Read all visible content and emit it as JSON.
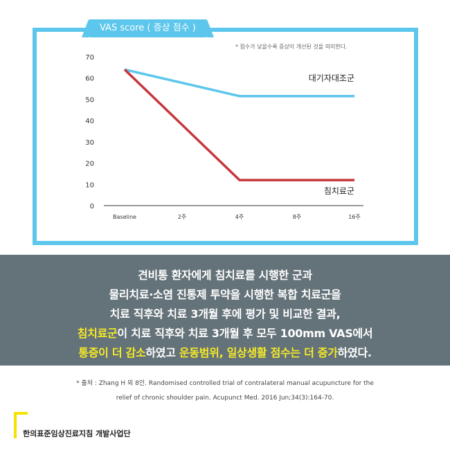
{
  "chart_data": {
    "type": "line",
    "title": "VAS score ( 증상 점수 )",
    "note": "* 점수가 낮을수록 증상이 개선된 것을 의미한다.",
    "categories": [
      "Baseline",
      "2주",
      "4주",
      "8주",
      "16주"
    ],
    "y_ticks": [
      "70",
      "60",
      "50",
      "40",
      "30",
      "20",
      "10",
      "0"
    ],
    "ylim": [
      0,
      70
    ],
    "grid": false,
    "series": [
      {
        "name": "대기자대조군",
        "color": "#5cc6ec",
        "points": [
          {
            "x": "Baseline",
            "y": 64
          },
          {
            "x": "4주",
            "y": 51.5
          },
          {
            "x": "16주",
            "y": 51.5
          }
        ]
      },
      {
        "name": "침치료군",
        "color": "#c6363c",
        "points": [
          {
            "x": "Baseline",
            "y": 64
          },
          {
            "x": "4주",
            "y": 12
          },
          {
            "x": "16주",
            "y": 12
          }
        ]
      }
    ]
  },
  "summary": {
    "line1": "견비통 환자에게 침치료를 시행한 군과",
    "line2": "물리치료·소염 진통제 투약을 시행한 복합 치료군을",
    "line3": "치료 직후와 치료 3개월 후에 평가 및 비교한 결과,",
    "line4_hl": "침치료군",
    "line4_rest": "이 치료 직후와 치료 3개월 후 모두 100mm VAS에서",
    "line5_hl1": "통증이 더 감소",
    "line5_mid": "하였고 ",
    "line5_hl2": "운동범위, 일상생활 점수는 더 증가",
    "line5_end": "하였다."
  },
  "citation": {
    "line1": "* 출처 : Zhang H 외 8인. Randomised controlled trial of contralateral manual acupuncture for the",
    "line2": "relief of chronic shoulder pain. Acupunct Med. 2016 Jun;34(3):164-70."
  },
  "footer": {
    "org": "한의표준임상진료지침 개발사업단"
  },
  "colors": {
    "accent_blue": "#5cc6ec",
    "accent_red": "#c6363c",
    "highlight_yellow": "#f6ea28",
    "banner_gray": "#647279"
  }
}
